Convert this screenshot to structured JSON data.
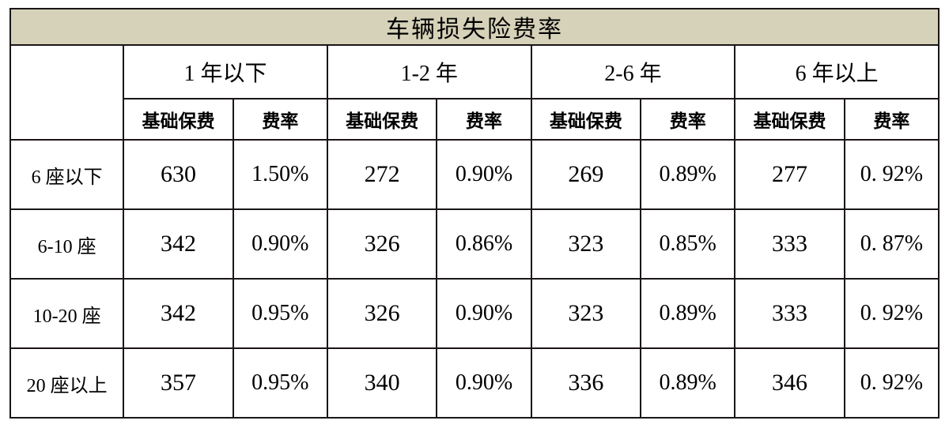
{
  "table": {
    "title": "车辆损失险费率",
    "age_groups": [
      "1 年以下",
      "1-2 年",
      "2-6 年",
      "6 年以上"
    ],
    "sub_headers": {
      "base": "基础保费",
      "rate": "费率"
    },
    "row_labels": [
      "6 座以下",
      "6-10 座",
      "10-20 座",
      "20 座以上"
    ],
    "rows": [
      {
        "cells": [
          {
            "base": "630",
            "rate": "1.50%"
          },
          {
            "base": "272",
            "rate": "0.90%"
          },
          {
            "base": "269",
            "rate": "0.89%"
          },
          {
            "base": "277",
            "rate": "0. 92%"
          }
        ]
      },
      {
        "cells": [
          {
            "base": "342",
            "rate": "0.90%"
          },
          {
            "base": "326",
            "rate": "0.86%"
          },
          {
            "base": "323",
            "rate": "0.85%"
          },
          {
            "base": "333",
            "rate": "0. 87%"
          }
        ]
      },
      {
        "cells": [
          {
            "base": "342",
            "rate": "0.95%"
          },
          {
            "base": "326",
            "rate": "0.90%"
          },
          {
            "base": "323",
            "rate": "0.89%"
          },
          {
            "base": "333",
            "rate": "0. 92%"
          }
        ]
      },
      {
        "cells": [
          {
            "base": "357",
            "rate": "0.95%"
          },
          {
            "base": "340",
            "rate": "0.90%"
          },
          {
            "base": "336",
            "rate": "0.89%"
          },
          {
            "base": "346",
            "rate": "0. 92%"
          }
        ]
      }
    ],
    "colors": {
      "title_bg": "#d6d2b9",
      "border": "#1a1516",
      "text": "#000000",
      "background": "#ffffff"
    },
    "font_sizes": {
      "title": 30,
      "group_header": 28,
      "sub_header": 23,
      "row_label": 24,
      "number": 30,
      "rate": 28
    }
  }
}
